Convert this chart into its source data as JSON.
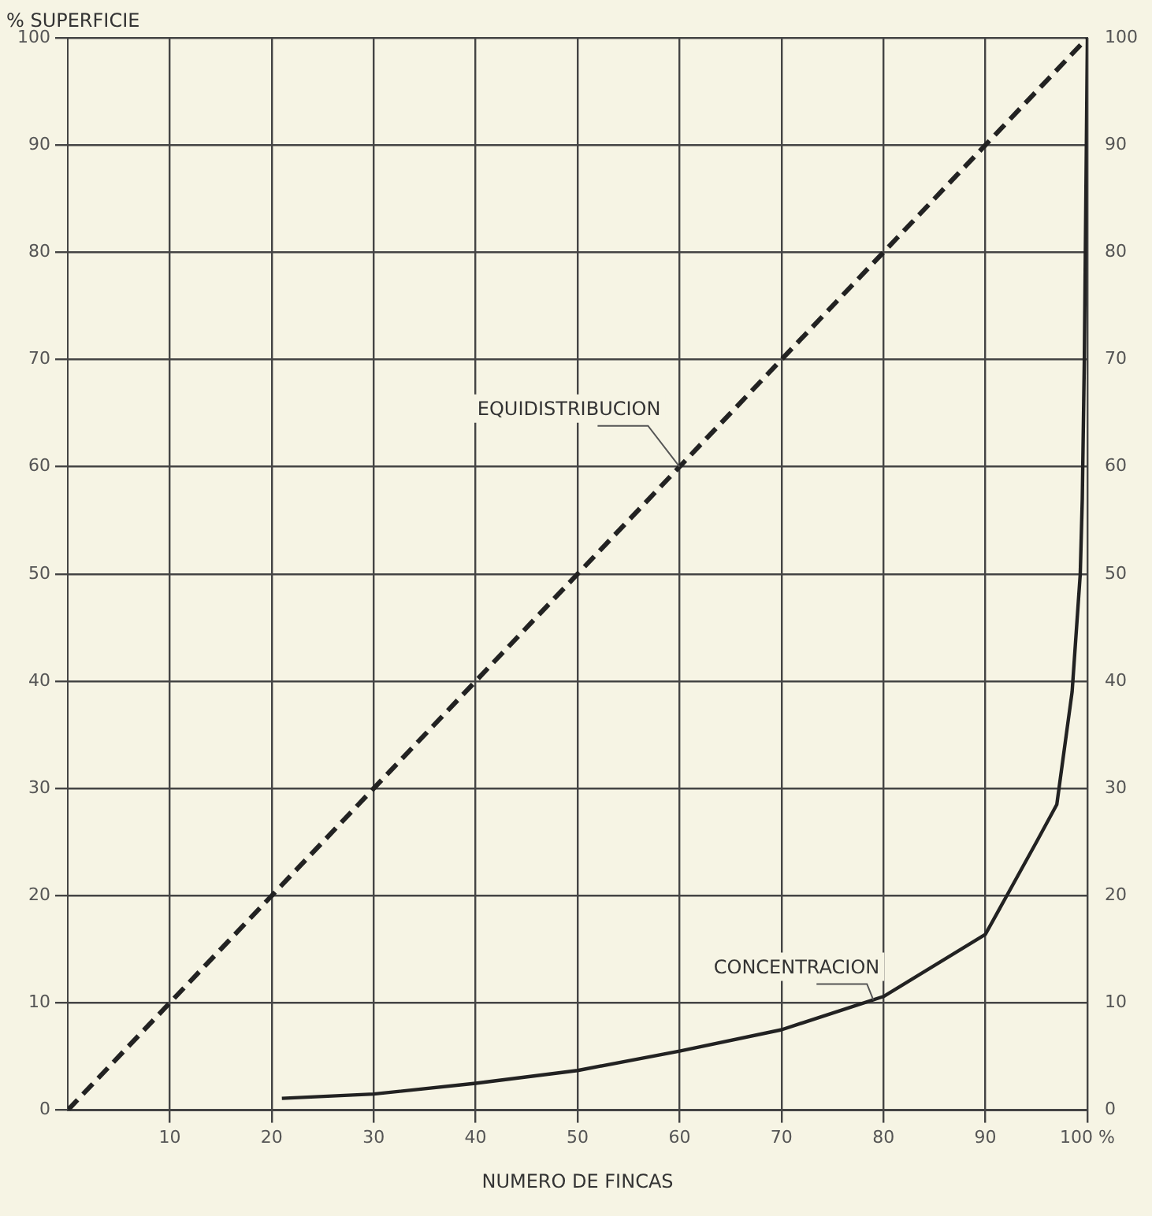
{
  "chart_data": {
    "type": "line",
    "xlabel": "NUMERO DE FINCAS",
    "ylabel": "% SUPERFICIE",
    "xlim": [
      0,
      100
    ],
    "xticks": [
      10,
      20,
      30,
      40,
      50,
      60,
      70,
      80,
      90,
      {
        "value": 100,
        "label": "100 %"
      }
    ],
    "ylim": [
      0,
      100
    ],
    "yticks": [
      0,
      10,
      20,
      30,
      40,
      50,
      60,
      70,
      80,
      90,
      100
    ],
    "y2lim": [
      0,
      100
    ],
    "y2ticks": [
      0,
      10,
      20,
      30,
      40,
      50,
      60,
      70,
      80,
      90,
      100
    ],
    "grid": true,
    "legend": false,
    "marker": "none",
    "series": [
      {
        "name": "EQUIDISTRIBUCION",
        "color": "#222222",
        "line_style": "dashed",
        "x": [
          0,
          100
        ],
        "values": [
          0,
          100
        ]
      },
      {
        "name": "CONCENTRACION",
        "color": "#222222",
        "line_style": "solid",
        "x": [
          21,
          30,
          40,
          50,
          60,
          70,
          80,
          90,
          95,
          97,
          98.5,
          99.3,
          99.5,
          99.7,
          100
        ],
        "values": [
          1.1,
          1.5,
          2.5,
          3.7,
          5.5,
          7.5,
          10.6,
          16.4,
          25,
          28.5,
          39,
          50,
          57,
          70,
          100
        ]
      }
    ]
  }
}
